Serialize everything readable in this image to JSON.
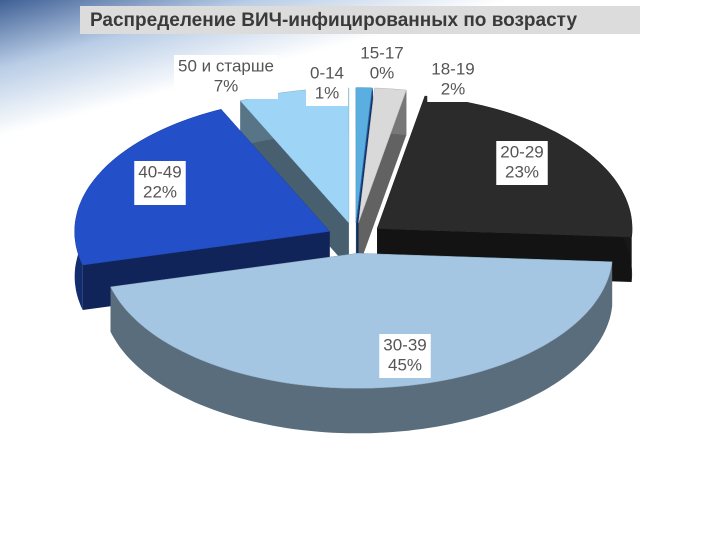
{
  "chart_data": {
    "type": "pie",
    "title": "Распределение ВИЧ-инфицированных по возрасту",
    "categories": [
      "0-14",
      "15-17",
      "18-19",
      "20-29",
      "30-39",
      "40-49",
      "50 и старше"
    ],
    "values": [
      1,
      0,
      2,
      23,
      45,
      22,
      7
    ],
    "value_labels": [
      "1%",
      "0%",
      "2%",
      "23%",
      "45%",
      "22%",
      "7%"
    ],
    "colors": [
      "#5aaee0",
      "#1f5fcf",
      "#d9d9d9",
      "#2b2b2b",
      "#a4c6e2",
      "#2350c8",
      "#9ed4f6"
    ]
  }
}
